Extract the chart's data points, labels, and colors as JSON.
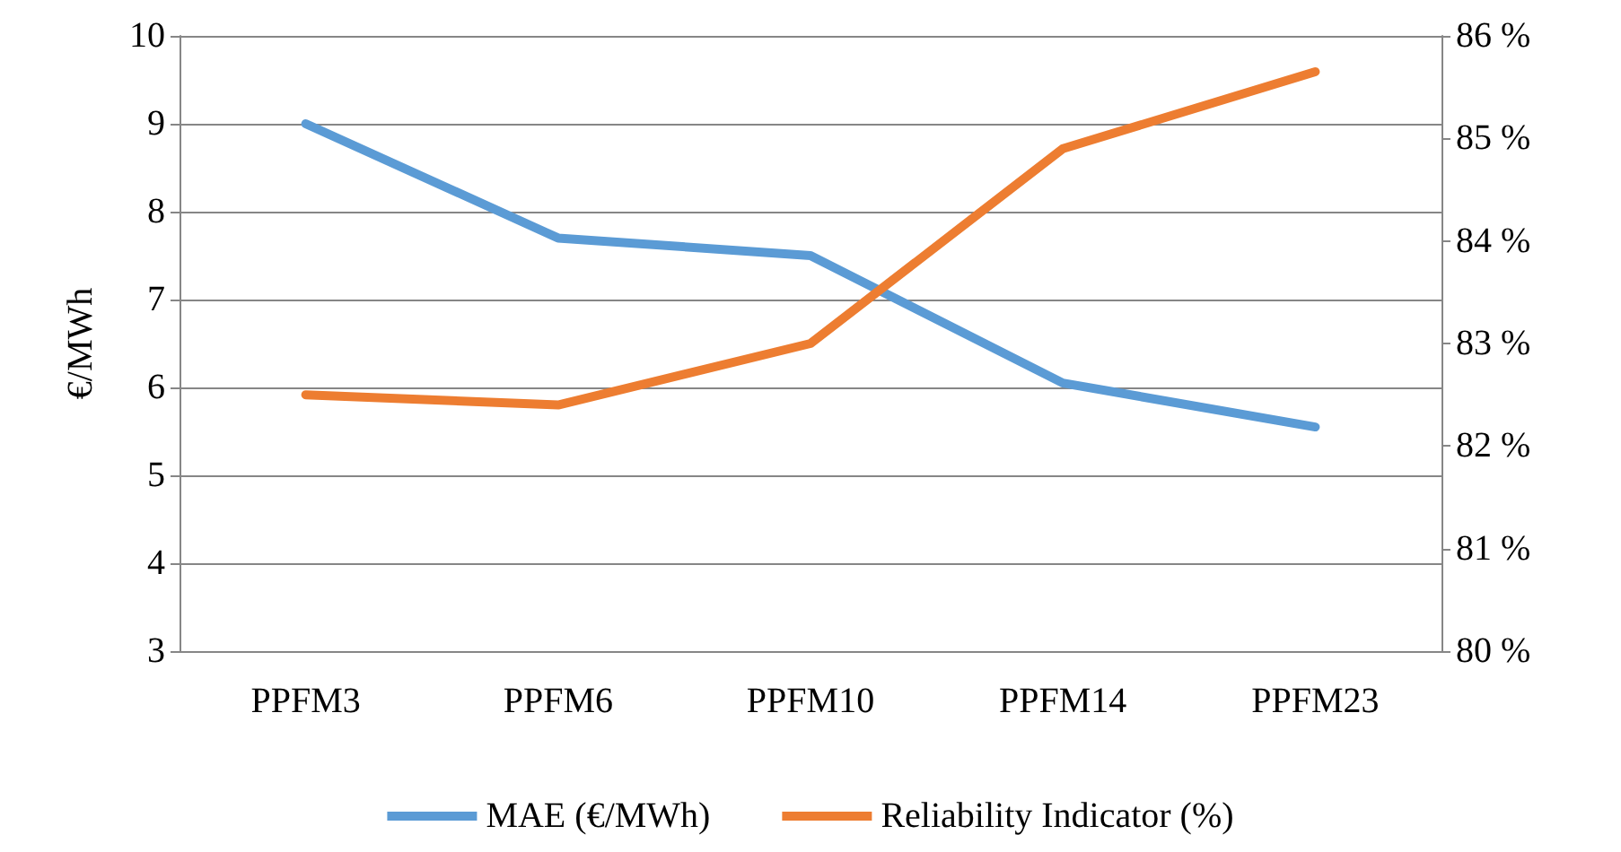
{
  "chart_data": {
    "type": "line",
    "ylabel": "€/MWh",
    "categories": [
      "PPFM3",
      "PPFM6",
      "PPFM10",
      "PPFM14",
      "PPFM23"
    ],
    "series": [
      {
        "name": "MAE (€/MWh)",
        "color": "#5b9bd5",
        "values": [
          9.0,
          7.7,
          7.5,
          6.05,
          5.55
        ]
      },
      {
        "name": "Reliability Indicator (%)",
        "color": "#ed7d31",
        "axis": "y2",
        "values": [
          82.5,
          82.4,
          83.0,
          84.9,
          85.65
        ]
      }
    ],
    "ylim": [
      3,
      10
    ],
    "yticks": [
      3,
      4,
      5,
      6,
      7,
      8,
      9,
      10
    ],
    "y2lim": [
      80,
      86
    ],
    "y2ticks": [
      {
        "value": 80,
        "label": "80 %"
      },
      {
        "value": 81,
        "label": "81 %"
      },
      {
        "value": 82,
        "label": "82 %"
      },
      {
        "value": 83,
        "label": "83 %"
      },
      {
        "value": 84,
        "label": "84 %"
      },
      {
        "value": 85,
        "label": "85 %"
      },
      {
        "value": 86,
        "label": "86 %"
      }
    ],
    "grid": "y",
    "legend": "bottom",
    "marker": "none",
    "line_style": "solid"
  }
}
